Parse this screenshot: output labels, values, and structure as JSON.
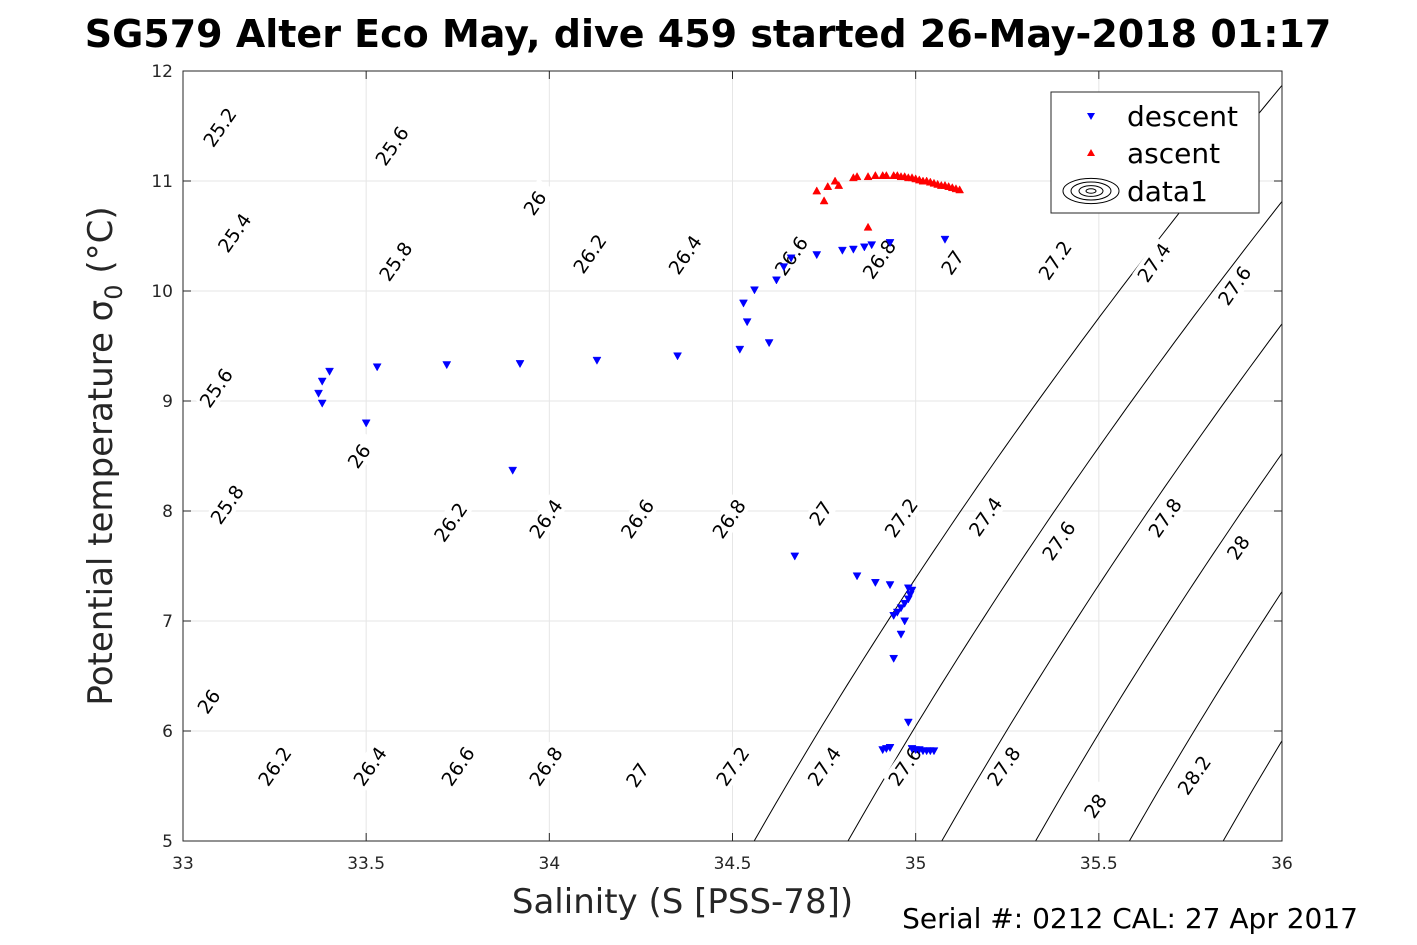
{
  "title": "SG579 Alter Eco May, dive 459 started 26-May-2018 01:17",
  "footer": "Serial #: 0212  CAL: 27 Apr 2017",
  "colors": {
    "descent": "#0000ff",
    "ascent": "#ff0000",
    "contour": "#000000",
    "grid": "#e6e6e6",
    "axis": "#262626"
  },
  "chart_data": {
    "type": "scatter",
    "title": "SG579 Alter Eco May, dive 459 started 26-May-2018 01:17",
    "xlabel": "Salinity (S [PSS-78])",
    "ylabel": "Potential temperature σ0 (°C)",
    "xlim": [
      33,
      36
    ],
    "ylim": [
      5,
      12
    ],
    "xticks": [
      "33",
      "33.5",
      "34",
      "34.5",
      "35",
      "35.5",
      "36"
    ],
    "yticks": [
      "5",
      "6",
      "7",
      "8",
      "9",
      "10",
      "11",
      "12"
    ],
    "grid": true,
    "legend_position": "top-right",
    "legend": [
      "descent",
      "ascent",
      "data1"
    ],
    "contour_levels": [
      25.2,
      25.4,
      25.6,
      25.8,
      26,
      26.2,
      26.4,
      26.6,
      26.8,
      27,
      27.2,
      27.4,
      27.6,
      27.8,
      28,
      28.2
    ],
    "contour_labels": [
      {
        "text": "25.2",
        "s": 33.1,
        "t": 11.49
      },
      {
        "text": "25.6",
        "s": 33.57,
        "t": 11.32
      },
      {
        "text": "26",
        "s": 33.96,
        "t": 10.8
      },
      {
        "text": "25.4",
        "s": 33.14,
        "t": 10.53
      },
      {
        "text": "25.8",
        "s": 33.58,
        "t": 10.27
      },
      {
        "text": "26.2",
        "s": 34.11,
        "t": 10.34
      },
      {
        "text": "26.4",
        "s": 34.37,
        "t": 10.33
      },
      {
        "text": "26.6",
        "s": 34.66,
        "t": 10.32
      },
      {
        "text": "26.8",
        "s": 34.9,
        "t": 10.29
      },
      {
        "text": "27",
        "s": 35.1,
        "t": 10.26
      },
      {
        "text": "27.2",
        "s": 35.38,
        "t": 10.28
      },
      {
        "text": "27.4",
        "s": 35.65,
        "t": 10.26
      },
      {
        "text": "27.6",
        "s": 35.87,
        "t": 10.05
      },
      {
        "text": "25.6",
        "s": 33.09,
        "t": 9.12
      },
      {
        "text": "26",
        "s": 33.48,
        "t": 8.5
      },
      {
        "text": "26.2",
        "s": 33.73,
        "t": 7.9
      },
      {
        "text": "26.4",
        "s": 33.99,
        "t": 7.93
      },
      {
        "text": "26.6",
        "s": 34.24,
        "t": 7.93
      },
      {
        "text": "26.8",
        "s": 34.49,
        "t": 7.93
      },
      {
        "text": "27",
        "s": 34.74,
        "t": 7.98
      },
      {
        "text": "27.2",
        "s": 34.96,
        "t": 7.94
      },
      {
        "text": "27.4",
        "s": 35.19,
        "t": 7.95
      },
      {
        "text": "27.6",
        "s": 35.39,
        "t": 7.73
      },
      {
        "text": "27.8",
        "s": 35.68,
        "t": 7.94
      },
      {
        "text": "28",
        "s": 35.88,
        "t": 7.67
      },
      {
        "text": "25.8",
        "s": 33.12,
        "t": 8.06
      },
      {
        "text": "26",
        "s": 33.07,
        "t": 6.27
      },
      {
        "text": "26.2",
        "s": 33.25,
        "t": 5.68
      },
      {
        "text": "26.4",
        "s": 33.51,
        "t": 5.68
      },
      {
        "text": "26.6",
        "s": 33.75,
        "t": 5.68
      },
      {
        "text": "26.8",
        "s": 33.99,
        "t": 5.68
      },
      {
        "text": "27",
        "s": 34.24,
        "t": 5.6
      },
      {
        "text": "27.2",
        "s": 34.5,
        "t": 5.68
      },
      {
        "text": "27.4",
        "s": 34.75,
        "t": 5.68
      },
      {
        "text": "27.6",
        "s": 34.97,
        "t": 5.68
      },
      {
        "text": "27.8",
        "s": 35.24,
        "t": 5.68
      },
      {
        "text": "28",
        "s": 35.49,
        "t": 5.32
      },
      {
        "text": "28.2",
        "s": 35.76,
        "t": 5.6
      }
    ],
    "series": [
      {
        "name": "descent",
        "marker": "triangle-down",
        "x": [
          33.4,
          33.38,
          33.37,
          33.38,
          33.53,
          33.5,
          33.72,
          33.92,
          33.9,
          34.13,
          34.35,
          34.52,
          34.53,
          34.54,
          34.56,
          34.6,
          34.62,
          34.64,
          34.66,
          34.73,
          34.8,
          34.83,
          34.86,
          34.88,
          34.93,
          35.08,
          34.67,
          34.84,
          34.89,
          34.93,
          34.94,
          34.95,
          34.96,
          34.97,
          34.98,
          34.985,
          34.99,
          34.98,
          34.97,
          34.96,
          34.94,
          34.93,
          34.92,
          34.91,
          34.98,
          34.99,
          35.0,
          35.01,
          35.02,
          35.03,
          35.04,
          35.05
        ],
        "y": [
          9.27,
          9.18,
          9.07,
          8.98,
          9.31,
          8.8,
          9.33,
          9.34,
          8.37,
          9.37,
          9.41,
          9.47,
          9.89,
          9.72,
          10.01,
          9.53,
          10.1,
          10.22,
          10.3,
          10.33,
          10.37,
          10.38,
          10.4,
          10.42,
          10.44,
          10.47,
          7.59,
          7.41,
          7.35,
          7.33,
          7.05,
          7.08,
          7.12,
          7.16,
          7.2,
          7.24,
          7.28,
          7.3,
          7.0,
          6.88,
          6.66,
          5.85,
          5.84,
          5.83,
          6.08,
          5.84,
          5.83,
          5.83,
          5.82,
          5.82,
          5.82,
          5.82
        ]
      },
      {
        "name": "ascent",
        "marker": "triangle-up",
        "x": [
          34.73,
          34.75,
          34.76,
          34.78,
          34.79,
          34.83,
          34.84,
          34.87,
          34.89,
          34.91,
          34.92,
          34.94,
          34.95,
          34.96,
          34.97,
          34.98,
          34.99,
          35.0,
          35.01,
          35.02,
          35.03,
          35.04,
          35.05,
          35.06,
          35.07,
          35.08,
          35.09,
          35.1,
          35.11,
          35.12,
          34.87
        ],
        "y": [
          10.91,
          10.82,
          10.95,
          11.0,
          10.96,
          11.03,
          11.04,
          11.04,
          11.05,
          11.05,
          11.05,
          11.05,
          11.05,
          11.04,
          11.04,
          11.03,
          11.03,
          11.02,
          11.01,
          11.0,
          11.0,
          10.99,
          10.98,
          10.97,
          10.96,
          10.96,
          10.95,
          10.94,
          10.93,
          10.92,
          10.58
        ]
      }
    ]
  }
}
